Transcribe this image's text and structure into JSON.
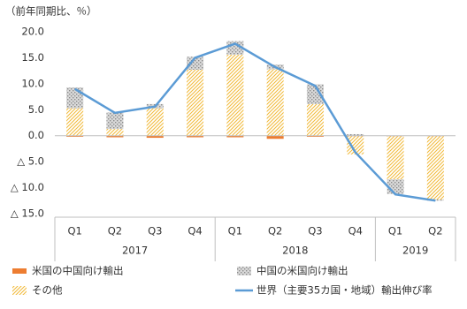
{
  "chart_data": {
    "type": "bar-line",
    "title": "（前年同期比、％）",
    "groups": [
      {
        "name": "2017",
        "categories": [
          "Q1",
          "Q2",
          "Q3",
          "Q4"
        ]
      },
      {
        "name": "2018",
        "categories": [
          "Q1",
          "Q2",
          "Q3",
          "Q4"
        ]
      },
      {
        "name": "2019",
        "categories": [
          "Q1",
          "Q2"
        ]
      }
    ],
    "series": [
      {
        "name": "米国の中国向け輸出",
        "type": "bar",
        "pattern": "solid",
        "color": "#ed7d31",
        "values": [
          -0.2,
          -0.3,
          -0.4,
          -0.3,
          -0.3,
          -0.6,
          -0.2,
          -0.1,
          -0.1,
          -0.1
        ]
      },
      {
        "name": "中国の米国向け輸出",
        "type": "bar",
        "pattern": "dots",
        "color": "#8c8c8c",
        "values": [
          4.0,
          3.2,
          0.8,
          2.5,
          2.6,
          0.9,
          3.8,
          0.3,
          -2.8,
          -0.2
        ]
      },
      {
        "name": "その他",
        "type": "bar",
        "pattern": "hatch",
        "color": "#f2b937",
        "values": [
          5.3,
          1.3,
          5.3,
          12.7,
          15.6,
          12.8,
          6.1,
          -3.5,
          -8.3,
          -12.2
        ]
      },
      {
        "name": "世界（主要35カ国・地域）輸出伸び率",
        "type": "line",
        "color": "#5b9bd5",
        "values": [
          9.0,
          4.4,
          5.6,
          15.0,
          17.7,
          13.2,
          9.6,
          -3.2,
          -11.3,
          -12.5
        ]
      }
    ],
    "ylim": [
      -15,
      20
    ],
    "yticks": [
      {
        "value": -15,
        "label": "△ 15.0"
      },
      {
        "value": -10,
        "label": "△ 10.0"
      },
      {
        "value": -5,
        "label": "△ 5.0"
      },
      {
        "value": 0,
        "label": "0.0"
      },
      {
        "value": 5,
        "label": "5.0"
      },
      {
        "value": 10,
        "label": "10.0"
      },
      {
        "value": 15,
        "label": "15.0"
      },
      {
        "value": 20,
        "label": "20.0"
      }
    ]
  }
}
